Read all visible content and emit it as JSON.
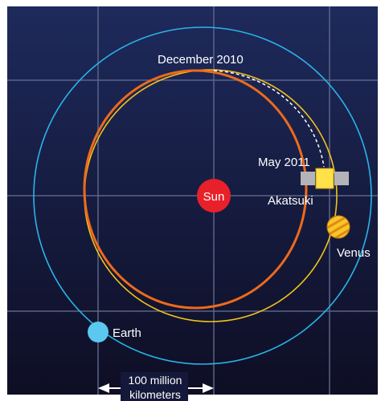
{
  "labels": {
    "december": "December 2010",
    "may": "May 2011",
    "sun": "Sun",
    "akatsuki": "Akatsuki",
    "venus": "Venus",
    "earth": "Earth",
    "scale_line1": "100 million",
    "scale_line2": "kilometers"
  },
  "colors": {
    "background_top": "#1e2a5c",
    "background_bottom": "#0e0e24",
    "grid": "#5a6488",
    "earth_orbit": "#29b4e8",
    "venus_orbit": "#f2c21b",
    "akatsuki_orbit": "#ee6a1c",
    "transfer_path": "#ffffff",
    "sun": "#e8202a",
    "earth": "#5bc8f0",
    "venus": "#f5b41a",
    "spacecraft_body": "#ffe14a",
    "spacecraft_panels": "#b4b4b8"
  },
  "icons": {
    "sun": "sun-icon",
    "earth": "earth-icon",
    "venus": "venus-icon",
    "spacecraft": "spacecraft-icon"
  }
}
